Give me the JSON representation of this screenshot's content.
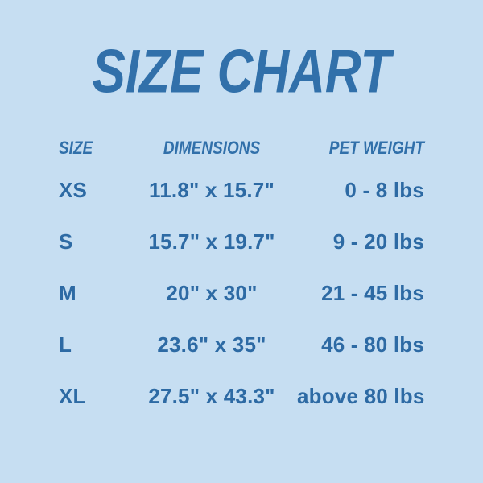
{
  "title": "SIZE CHART",
  "colors": {
    "background": "#c6def2",
    "heading_text": "#3170aa",
    "body_text": "#2d6aa4"
  },
  "chart_data": {
    "type": "table",
    "title": "SIZE CHART",
    "columns": [
      "SIZE",
      "DIMENSIONS",
      "PET WEIGHT"
    ],
    "rows": [
      [
        "XS",
        "11.8\" x 15.7\"",
        "0 - 8 lbs"
      ],
      [
        "S",
        "15.7\" x 19.7\"",
        "9 - 20 lbs"
      ],
      [
        "M",
        "20\" x 30\"",
        "21 - 45 lbs"
      ],
      [
        "L",
        "23.6\" x 35\"",
        "46 - 80 lbs"
      ],
      [
        "XL",
        "27.5\" x 43.3\"",
        "above 80 lbs"
      ]
    ],
    "layout": {
      "size_column_align": "left",
      "dimensions_column_align": "center",
      "pet_weight_column_align": "right",
      "grid": "off",
      "borders": "none"
    }
  }
}
